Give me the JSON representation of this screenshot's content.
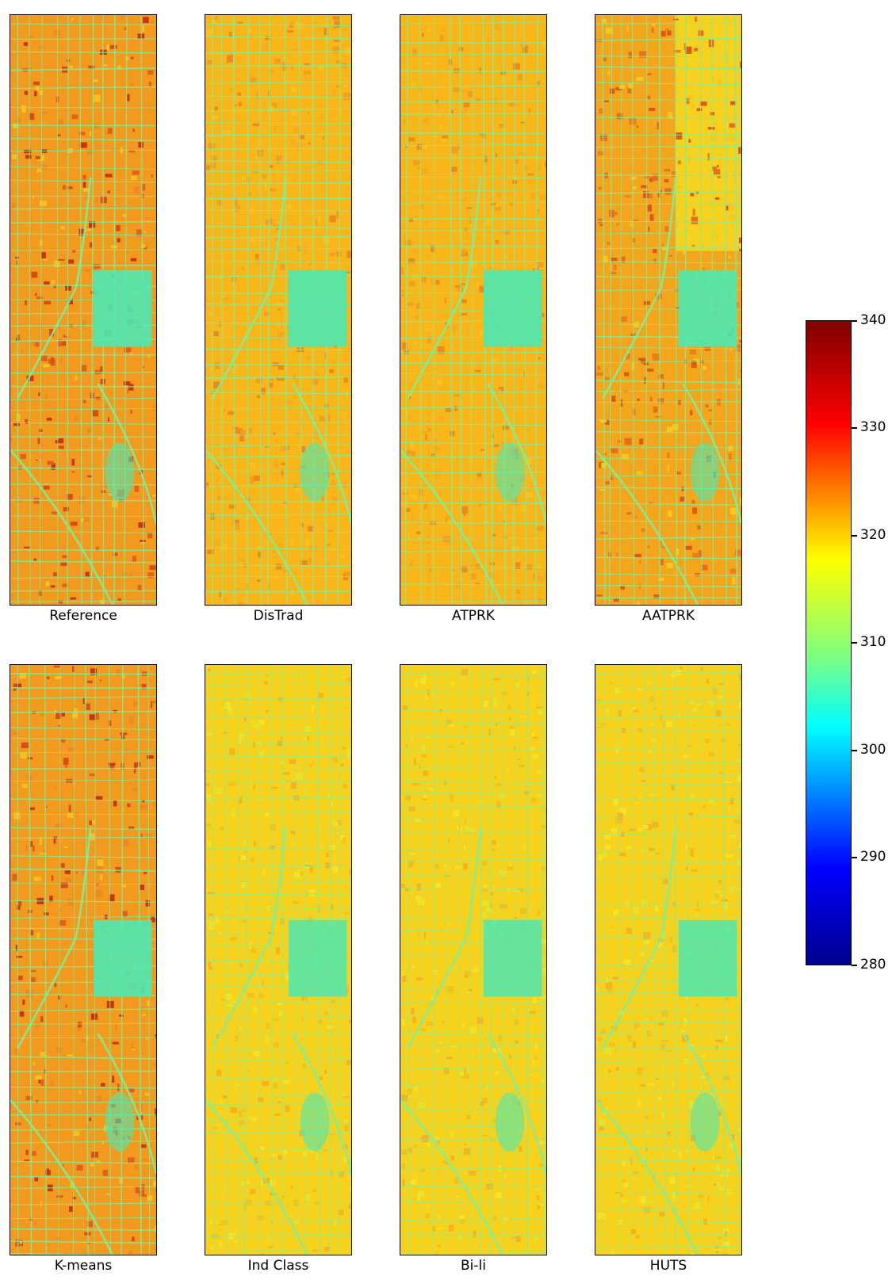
{
  "panels": [
    {
      "label": "Reference",
      "tone": "hot"
    },
    {
      "label": "DisTrad",
      "tone": "warm"
    },
    {
      "label": "ATPRK",
      "tone": "warm"
    },
    {
      "label": "AATPRK",
      "tone": "hot-grad"
    },
    {
      "label": "K-means",
      "tone": "hot"
    },
    {
      "label": "Ind Class",
      "tone": "mild"
    },
    {
      "label": "Bi-li",
      "tone": "mild"
    },
    {
      "label": "HUTS",
      "tone": "mild"
    }
  ],
  "colorbar": {
    "min": 280,
    "max": 340,
    "ticks": [
      "340",
      "330",
      "320",
      "310",
      "300",
      "290",
      "280"
    ],
    "colormap": "jet"
  },
  "colors": {
    "panel_border": "#000000",
    "park": "#4ee8b0",
    "road": "#7ef09a"
  }
}
